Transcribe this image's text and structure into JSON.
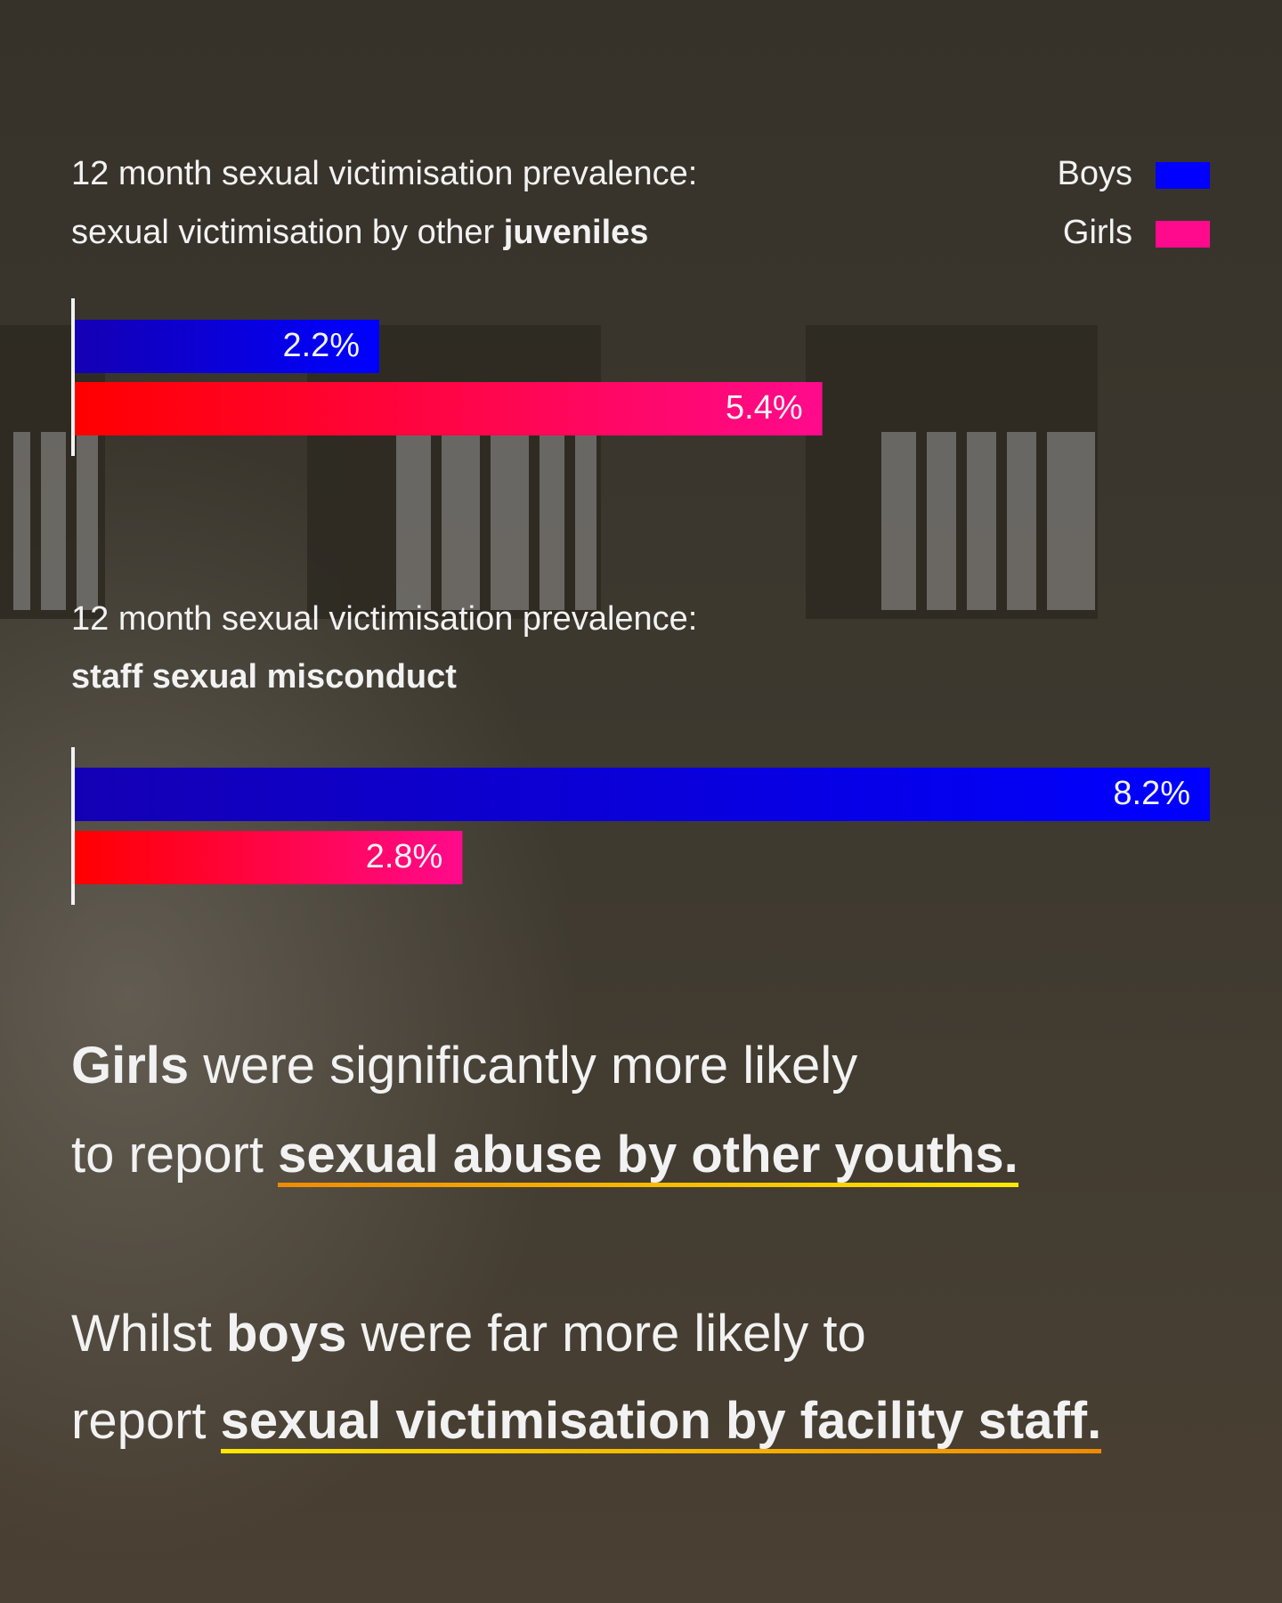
{
  "chart_data": [
    {
      "type": "bar",
      "orientation": "horizontal",
      "title": "12 month sexual victimisation prevalence:",
      "subtitle": [
        {
          "text": "sexual victimisation by other ",
          "bold": false
        },
        {
          "text": "juveniles",
          "bold": true
        }
      ],
      "legend": "top-right",
      "series": [
        {
          "name": "Boys",
          "color": "#0000ff",
          "gradient_start": "#1400b4",
          "values": [
            2.2
          ],
          "value_labels": [
            "2.2%"
          ]
        },
        {
          "name": "Girls",
          "color": "#ff0a8c",
          "gradient_start": "#ff0000",
          "values": [
            5.4
          ],
          "value_labels": [
            "5.4%"
          ]
        }
      ]
    },
    {
      "type": "bar",
      "orientation": "horizontal",
      "title": "12 month sexual victimisation prevalence:",
      "subtitle": [
        {
          "text": "staff sexual misconduct",
          "bold": true
        }
      ],
      "series": [
        {
          "color": "#0000ff",
          "gradient_start": "#1400b4",
          "values": [
            8.2
          ],
          "value_labels": [
            "8.2%"
          ]
        },
        {
          "color": "#ff0a8c",
          "gradient_start": "#ff0000",
          "values": [
            2.8
          ],
          "value_labels": [
            "2.8%"
          ]
        }
      ]
    }
  ],
  "statements": [
    {
      "underline_colors": [
        "#f08a00",
        "#ffe800"
      ],
      "lines": [
        [
          {
            "text": "Girls",
            "bold": true
          },
          {
            "text": " were significantly more likely"
          }
        ],
        [
          {
            "text": "to report "
          },
          {
            "text": "sexual abuse by other youths.",
            "bold": true,
            "underline": true
          }
        ]
      ]
    },
    {
      "underline_colors": [
        "#ffe800",
        "#f08a00"
      ],
      "lines": [
        [
          {
            "text": "Whilst "
          },
          {
            "text": "boys",
            "bold": true
          },
          {
            "text": " were far more likely to"
          }
        ],
        [
          {
            "text": "report "
          },
          {
            "text": "sexual victimisation by facility staff.",
            "bold": true,
            "underline": true
          }
        ]
      ]
    }
  ]
}
